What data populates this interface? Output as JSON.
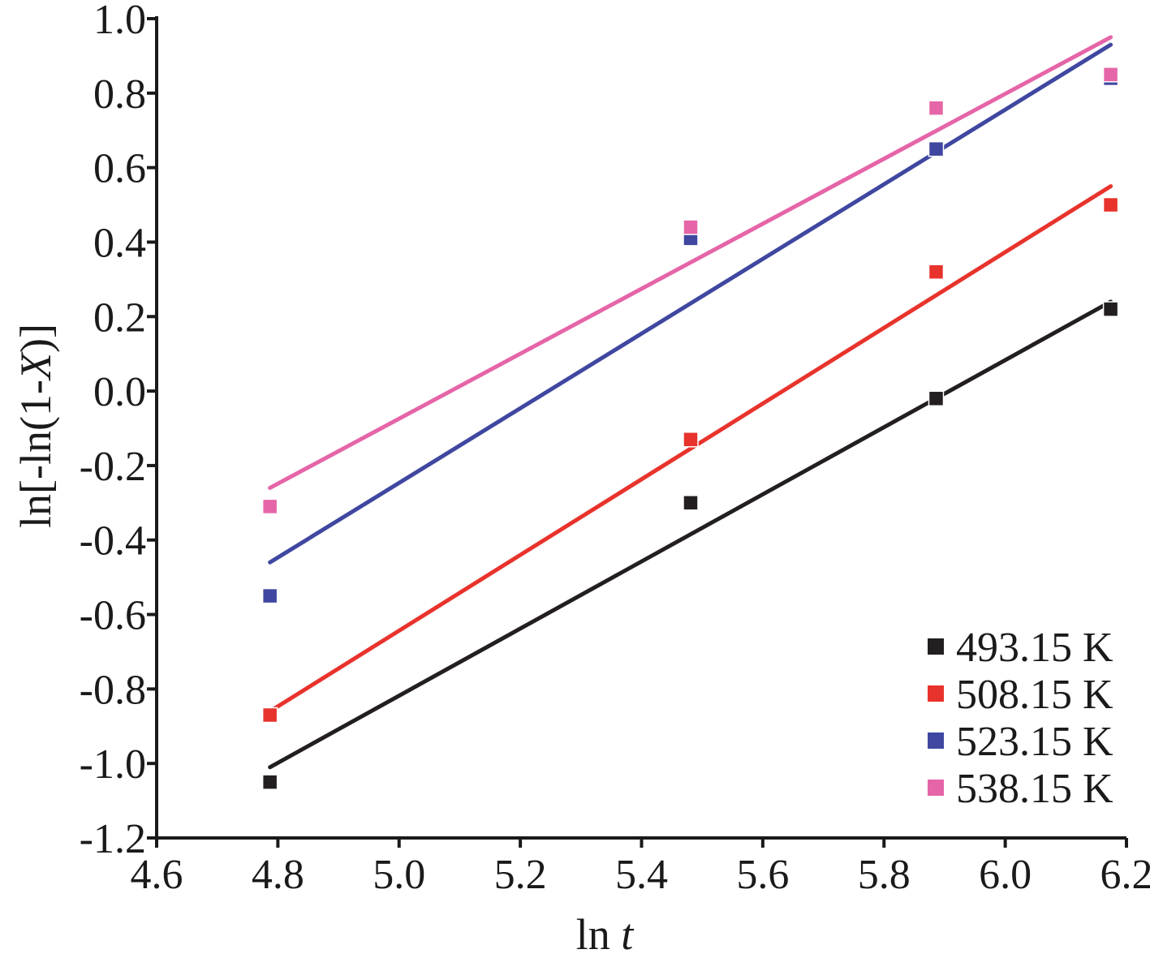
{
  "chart_data": {
    "type": "scatter",
    "xlabel": {
      "prefix": "ln ",
      "var": "t"
    },
    "ylabel": {
      "prefix": "ln[-ln(1-",
      "var": "X",
      "suffix": ")]"
    },
    "xlim": [
      4.6,
      6.2
    ],
    "ylim": [
      -1.2,
      1.0
    ],
    "x_ticks": [
      "4.6",
      "4.8",
      "5.0",
      "5.2",
      "5.4",
      "5.6",
      "5.8",
      "6.0",
      "6.2"
    ],
    "y_ticks": [
      "1.0",
      "0.8",
      "0.6",
      "0.4",
      "0.2",
      "0.0",
      "-0.2",
      "-0.4",
      "-0.6",
      "-0.8",
      "-1.0",
      "-1.2"
    ],
    "grid": false,
    "legend_position": "bottom-right",
    "x": [
      4.787,
      5.481,
      5.886,
      6.174
    ],
    "series": [
      {
        "name": "493.15 K",
        "color": "#231f20",
        "values": [
          -1.05,
          -0.3,
          -0.02,
          0.22
        ],
        "fit": [
          -1.01,
          0.24
        ]
      },
      {
        "name": "508.15 K",
        "color": "#e8332c",
        "values": [
          -0.87,
          -0.13,
          0.32,
          0.5
        ],
        "fit": [
          -0.86,
          0.55
        ]
      },
      {
        "name": "523.15 K",
        "color": "#3f47a0",
        "values": [
          -0.55,
          0.41,
          0.65,
          0.84
        ],
        "fit": [
          -0.46,
          0.93
        ]
      },
      {
        "name": "538.15 K",
        "color": "#e565a8",
        "values": [
          -0.31,
          0.44,
          0.76,
          0.85
        ],
        "fit": [
          -0.26,
          0.95
        ]
      }
    ]
  }
}
